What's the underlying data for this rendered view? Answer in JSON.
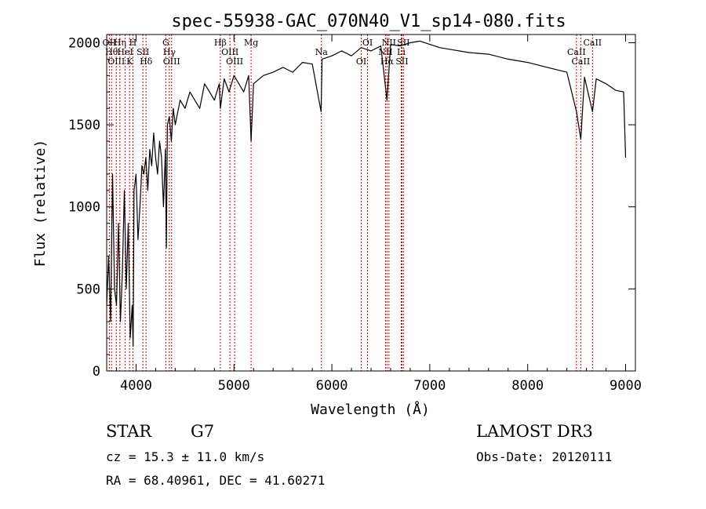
{
  "chart_data": {
    "type": "line",
    "title": "spec-55938-GAC_070N40_V1_sp14-080.fits",
    "xlabel": "Wavelength (Å)",
    "ylabel": "Flux (relative)",
    "xlim": [
      3700,
      9100
    ],
    "ylim": [
      0,
      2050
    ],
    "xticks": [
      4000,
      5000,
      6000,
      7000,
      8000,
      9000
    ],
    "yticks": [
      0,
      500,
      1000,
      1500,
      2000
    ],
    "series": [
      {
        "name": "flux",
        "x": [
          3700,
          3720,
          3740,
          3760,
          3780,
          3800,
          3820,
          3840,
          3860,
          3880,
          3900,
          3920,
          3940,
          3960,
          3970,
          3980,
          4000,
          4020,
          4040,
          4060,
          4080,
          4100,
          4120,
          4140,
          4160,
          4180,
          4200,
          4220,
          4240,
          4260,
          4280,
          4300,
          4310,
          4320,
          4340,
          4360,
          4380,
          4400,
          4450,
          4500,
          4550,
          4600,
          4650,
          4700,
          4750,
          4800,
          4850,
          4861,
          4900,
          4950,
          5000,
          5050,
          5100,
          5150,
          5175,
          5200,
          5300,
          5400,
          5500,
          5600,
          5700,
          5800,
          5890,
          5900,
          6000,
          6100,
          6200,
          6300,
          6400,
          6500,
          6563,
          6600,
          6700,
          6800,
          6900,
          7000,
          7100,
          7200,
          7400,
          7600,
          7800,
          8000,
          8200,
          8400,
          8498,
          8542,
          8580,
          8662,
          8700,
          8800,
          8900,
          8980,
          9000
        ],
        "values": [
          400,
          700,
          300,
          1200,
          500,
          400,
          900,
          300,
          600,
          1100,
          500,
          900,
          200,
          400,
          150,
          1100,
          1200,
          800,
          1000,
          1250,
          1200,
          1300,
          1100,
          1350,
          1250,
          1450,
          1300,
          1200,
          1400,
          1300,
          1000,
          1350,
          750,
          1500,
          1550,
          1400,
          1600,
          1500,
          1650,
          1600,
          1700,
          1650,
          1600,
          1750,
          1700,
          1650,
          1750,
          1600,
          1780,
          1700,
          1800,
          1750,
          1700,
          1800,
          1400,
          1750,
          1800,
          1820,
          1850,
          1820,
          1880,
          1870,
          1580,
          1900,
          1920,
          1950,
          1920,
          1970,
          1950,
          1980,
          1650,
          1990,
          1980,
          2000,
          2010,
          1990,
          1970,
          1960,
          1940,
          1930,
          1900,
          1880,
          1850,
          1820,
          1580,
          1410,
          1790,
          1580,
          1780,
          1750,
          1710,
          1700,
          1300
        ]
      }
    ],
    "spectral_lines": [
      {
        "wavelength": 3727,
        "label": "OII"
      },
      {
        "wavelength": 3750,
        "label": "Hθ"
      },
      {
        "wavelength": 3798,
        "label": "OIII"
      },
      {
        "wavelength": 3835,
        "label": "Hη"
      },
      {
        "wavelength": 3889,
        "label": "HeI"
      },
      {
        "wavelength": 3934,
        "label": "K"
      },
      {
        "wavelength": 3968,
        "label": "H"
      },
      {
        "wavelength": 4070,
        "label": "SII"
      },
      {
        "wavelength": 4102,
        "label": "Hδ"
      },
      {
        "wavelength": 4304,
        "label": "G"
      },
      {
        "wavelength": 4340,
        "label": "Hγ"
      },
      {
        "wavelength": 4363,
        "label": "OIII"
      },
      {
        "wavelength": 4861,
        "label": "Hβ"
      },
      {
        "wavelength": 4959,
        "label": "OIII"
      },
      {
        "wavelength": 5007,
        "label": "OIII"
      },
      {
        "wavelength": 5175,
        "label": "Mg"
      },
      {
        "wavelength": 5893,
        "label": "Na"
      },
      {
        "wavelength": 6300,
        "label": "OI"
      },
      {
        "wavelength": 6364,
        "label": "OI"
      },
      {
        "wavelength": 6548,
        "label": "NII"
      },
      {
        "wavelength": 6563,
        "label": "Hα"
      },
      {
        "wavelength": 6583,
        "label": "NII"
      },
      {
        "wavelength": 6708,
        "label": "Li"
      },
      {
        "wavelength": 6716,
        "label": "SII"
      },
      {
        "wavelength": 6731,
        "label": "SII"
      },
      {
        "wavelength": 8498,
        "label": "CaII"
      },
      {
        "wavelength": 8542,
        "label": "CaII"
      },
      {
        "wavelength": 8662,
        "label": "CaII"
      }
    ]
  },
  "info": {
    "class": "STAR",
    "subclass": "G7",
    "survey": "LAMOST DR3",
    "redshift": "cz = 15.3 ± 11.0 km/s",
    "obs_date": "Obs-Date: 20120111",
    "coords": "RA =  68.40961, DEC =  41.60271"
  },
  "colors": {
    "line": "#000000",
    "marker": "#cc0000",
    "axis": "#000000"
  }
}
